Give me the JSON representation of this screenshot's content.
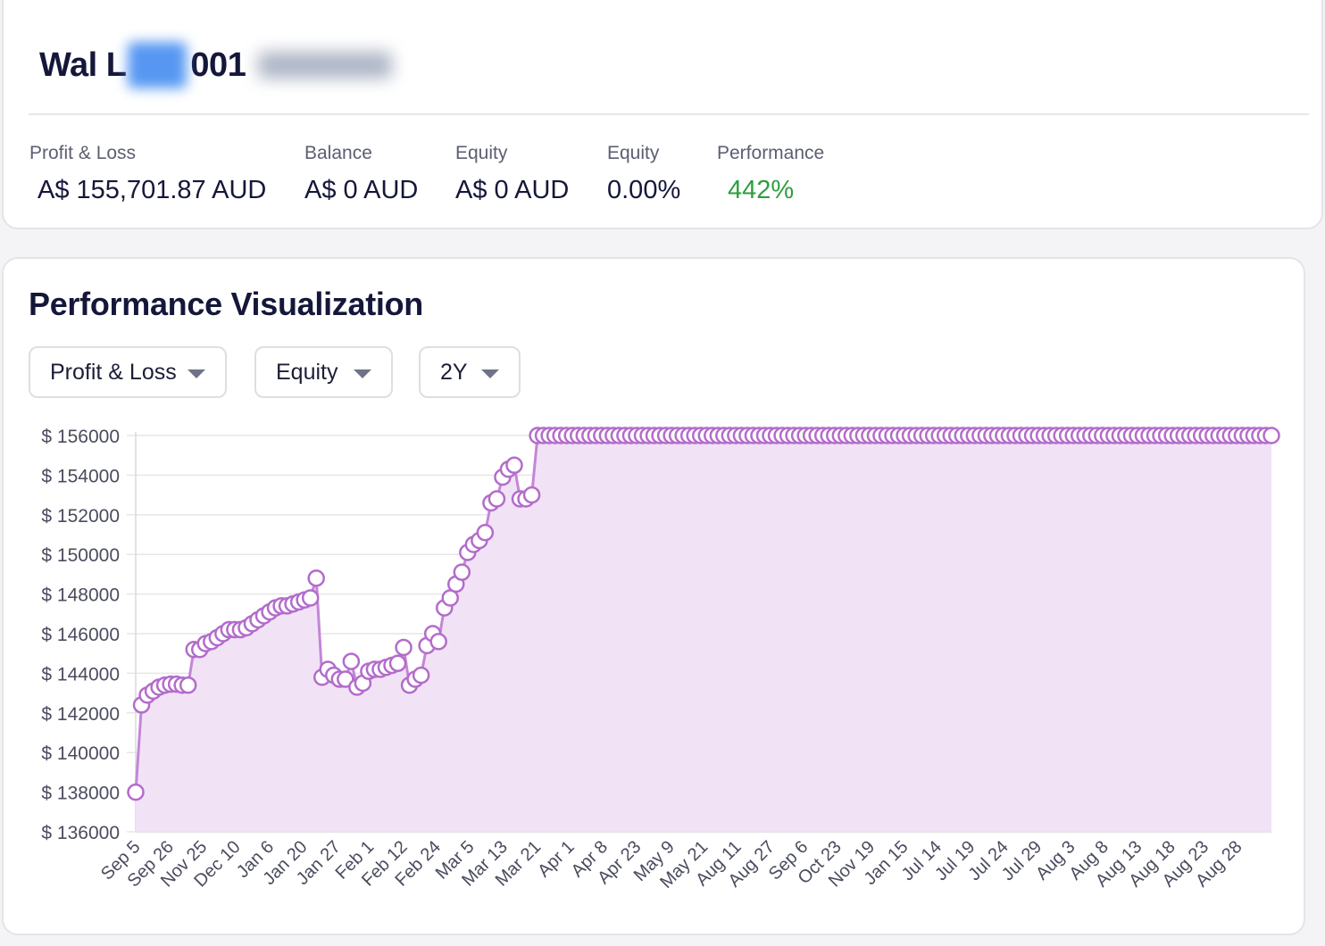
{
  "account": {
    "title_prefix": "Wal L",
    "title_suffix": "001"
  },
  "stats": [
    {
      "label": "Profit & Loss",
      "value": "A$ 155,701.87 AUD"
    },
    {
      "label": "Balance",
      "value": "A$ 0 AUD"
    },
    {
      "label": "Equity",
      "value": "A$ 0 AUD"
    },
    {
      "label": "Equity",
      "value": "0.00%"
    },
    {
      "label": "Performance",
      "value": "442%",
      "color": "#2e9e3f"
    }
  ],
  "chart_section": {
    "title": "Performance Visualization",
    "dropdowns": [
      {
        "label": "Profit & Loss"
      },
      {
        "label": "Equity"
      },
      {
        "label": "2Y"
      }
    ]
  },
  "colors": {
    "line": "#c486d8",
    "marker_stroke": "#b36ccb",
    "area_fill": "#f2e2f6",
    "positive": "#2e9e3f"
  },
  "chart_data": {
    "type": "area",
    "y_tick_prefix": "$ ",
    "ylim": [
      136000,
      156000
    ],
    "y_ticks": [
      136000,
      138000,
      140000,
      142000,
      144000,
      146000,
      148000,
      150000,
      152000,
      154000,
      156000
    ],
    "x_tick_labels": [
      "Sep 5",
      "Sep 26",
      "Nov 25",
      "Dec 10",
      "Jan 6",
      "Jan 20",
      "Jan 27",
      "Feb 1",
      "Feb 12",
      "Feb 24",
      "Mar 5",
      "Mar 13",
      "Mar 21",
      "Apr 1",
      "Apr 8",
      "Apr 23",
      "May 9",
      "May 21",
      "Aug 11",
      "Aug 27",
      "Sep 6",
      "Oct 23",
      "Nov 19",
      "Jan 15",
      "Jul 14",
      "Jul 19",
      "Jul 24",
      "Jul 29",
      "Aug 3",
      "Aug 8",
      "Aug 13",
      "Aug 18",
      "Aug 23",
      "Aug 28"
    ],
    "grid": true,
    "markers": true,
    "values": [
      138000,
      142400,
      142900,
      143100,
      143300,
      143400,
      143450,
      143450,
      143400,
      143400,
      145200,
      145200,
      145500,
      145600,
      145800,
      146000,
      146200,
      146200,
      146200,
      146300,
      146500,
      146700,
      146900,
      147100,
      147300,
      147400,
      147400,
      147500,
      147600,
      147700,
      147800,
      148800,
      143800,
      144200,
      143900,
      143700,
      143700,
      144600,
      143300,
      143500,
      144100,
      144200,
      144200,
      144300,
      144400,
      144500,
      145300,
      143400,
      143700,
      143900,
      145400,
      146000,
      145600,
      147300,
      147800,
      148500,
      149100,
      150100,
      150500,
      150700,
      151100,
      152600,
      152800,
      153900,
      154300,
      154500,
      152800,
      152800,
      153000,
      156000,
      156000,
      156000,
      156000,
      156000,
      156000,
      156000,
      156000,
      156000,
      156000,
      156000,
      156000,
      156000,
      156000,
      156000,
      156000,
      156000,
      156000,
      156000,
      156000,
      156000,
      156000,
      156000,
      156000,
      156000,
      156000,
      156000,
      156000,
      156000,
      156000,
      156000,
      156000,
      156000,
      156000,
      156000,
      156000,
      156000,
      156000,
      156000,
      156000,
      156000,
      156000,
      156000,
      156000,
      156000,
      156000,
      156000,
      156000,
      156000,
      156000,
      156000,
      156000,
      156000,
      156000,
      156000,
      156000,
      156000,
      156000,
      156000,
      156000,
      156000,
      156000,
      156000,
      156000,
      156000,
      156000,
      156000,
      156000,
      156000,
      156000,
      156000,
      156000,
      156000,
      156000,
      156000,
      156000,
      156000,
      156000,
      156000,
      156000,
      156000,
      156000,
      156000,
      156000,
      156000,
      156000,
      156000,
      156000,
      156000,
      156000,
      156000,
      156000,
      156000,
      156000,
      156000,
      156000,
      156000,
      156000,
      156000,
      156000,
      156000,
      156000,
      156000,
      156000,
      156000,
      156000,
      156000,
      156000,
      156000,
      156000,
      156000,
      156000,
      156000,
      156000,
      156000,
      156000,
      156000,
      156000,
      156000,
      156000,
      156000,
      156000,
      156000,
      156000,
      156000,
      156000,
      156000
    ]
  }
}
